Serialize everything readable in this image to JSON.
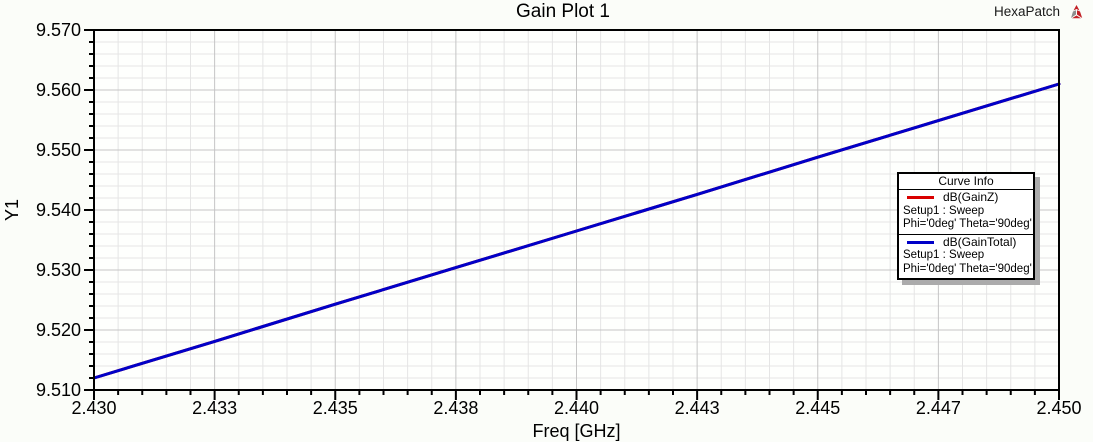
{
  "header": {
    "title": "Gain Plot 1",
    "watermark": "HexaPatch"
  },
  "legend": {
    "title": "Curve Info",
    "entries": [
      {
        "label": "dB(GainZ)",
        "color": "#d90000",
        "detail1": "Setup1 : Sweep",
        "detail2": "Phi='0deg' Theta='90deg'"
      },
      {
        "label": "dB(GainTotal)",
        "color": "#0000c8",
        "detail1": "Setup1 : Sweep",
        "detail2": "Phi='0deg' Theta='90deg'"
      }
    ]
  },
  "chart_data": {
    "type": "line",
    "title": "Gain Plot 1",
    "xlabel": "Freq [GHz]",
    "ylabel": "Y1",
    "xlim": [
      2.43,
      2.45
    ],
    "ylim": [
      9.51,
      9.57
    ],
    "grid": true,
    "legend_position": "right-middle",
    "x_ticks": {
      "values": [
        2.43,
        2.4325,
        2.435,
        2.4375,
        2.44,
        2.4425,
        2.445,
        2.4475,
        2.45
      ],
      "labels": [
        "2.430",
        "2.433",
        "2.435",
        "2.438",
        "2.440",
        "2.443",
        "2.445",
        "2.447",
        "2.450"
      ]
    },
    "y_ticks": {
      "values": [
        9.51,
        9.52,
        9.53,
        9.54,
        9.55,
        9.56,
        9.57
      ],
      "labels": [
        "9.510",
        "9.520",
        "9.530",
        "9.540",
        "9.550",
        "9.560",
        "9.570"
      ]
    },
    "x_minor_step": 0.0005,
    "y_minor_step": 0.002,
    "x": [
      2.43,
      2.4325,
      2.435,
      2.4375,
      2.44,
      2.4425,
      2.445,
      2.4475,
      2.45
    ],
    "series": [
      {
        "name": "dB(GainZ)",
        "color": "#d90000",
        "values": [
          9.512,
          9.5181,
          9.5243,
          9.5304,
          9.5365,
          9.5426,
          9.5488,
          9.5549,
          9.561
        ]
      },
      {
        "name": "dB(GainTotal)",
        "color": "#0000c8",
        "values": [
          9.512,
          9.5181,
          9.5243,
          9.5304,
          9.5365,
          9.5426,
          9.5488,
          9.5549,
          9.561
        ]
      }
    ]
  },
  "colors": {
    "page_bg": "#fbfdf9",
    "plot_bg": "#fefffd",
    "grid_minor": "#e5e5e5",
    "grid_major": "#c5c5c5",
    "axis": "#000000",
    "legend_shadow": "#ababab",
    "logo_red": "#c22026",
    "logo_gray": "#8d8d8d"
  }
}
